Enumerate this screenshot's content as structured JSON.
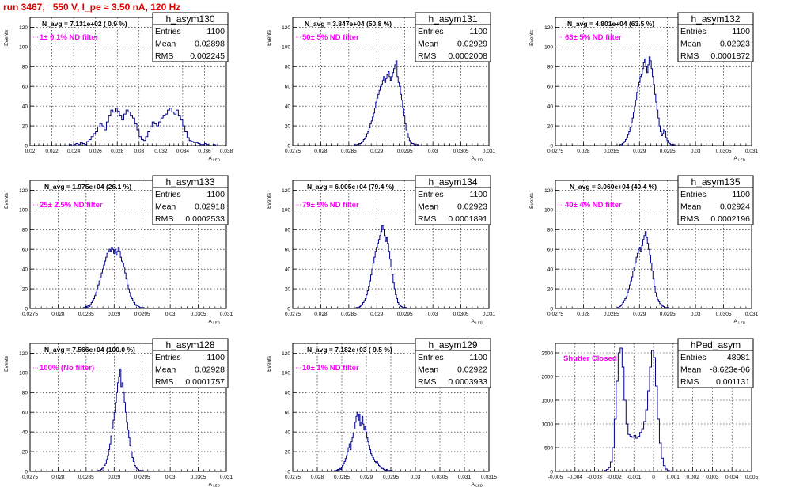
{
  "run_title": "run 3467,   550 V, I_pe ≈ 3.50 nA, 120 Hz",
  "stat_labels": {
    "entries": "Entries",
    "mean": "Mean",
    "rms": "RMS"
  },
  "colors": {
    "histogram": "#00008b",
    "title": "#e00000",
    "annotation": "#ff00ff"
  },
  "chart_data": [
    {
      "type": "histogram",
      "name": "h_asym130",
      "ylabel": "Events",
      "xlabel": "A_LED",
      "n_avg": "N_avg = 7.131e+02 ( 0.9 %)",
      "filter": "1± 0.1% ND filter",
      "stats": {
        "entries": "1100",
        "mean": "0.02898",
        "rms": "0.002245"
      },
      "xlim": [
        0.02,
        0.038
      ],
      "ylim": [
        0,
        130
      ],
      "xticks": [
        "0.02",
        "0.022",
        "0.024",
        "0.026",
        "0.028",
        "0.03",
        "0.032",
        "0.034",
        "0.036",
        "0.038"
      ],
      "yticks": [
        "0",
        "20",
        "40",
        "60",
        "80",
        "100",
        "120"
      ],
      "bins": {
        "start": 0.0236,
        "width": 0.0002,
        "values": [
          1,
          0,
          1,
          2,
          1,
          3,
          2,
          1,
          4,
          6,
          9,
          12,
          14,
          19,
          22,
          20,
          16,
          24,
          30,
          36,
          34,
          38,
          35,
          30,
          26,
          32,
          36,
          34,
          30,
          28,
          22,
          16,
          9,
          6,
          5,
          9,
          14,
          19,
          24,
          22,
          20,
          24,
          28,
          30,
          32,
          36,
          38,
          34,
          32,
          36,
          30,
          26,
          20,
          14,
          8,
          5,
          4,
          3,
          3,
          2,
          1,
          1,
          2,
          1,
          0,
          0,
          1
        ]
      }
    },
    {
      "type": "histogram",
      "name": "h_asym131",
      "ylabel": "Events",
      "xlabel": "A_LED",
      "n_avg": "N_avg = 3.847e+04 (50.8 %)",
      "filter": "50± 5% ND filter",
      "stats": {
        "entries": "1100",
        "mean": "0.02929",
        "rms": "0.0002008"
      },
      "xlim": [
        0.0275,
        0.031
      ],
      "ylim": [
        0,
        130
      ],
      "xticks": [
        "0.0275",
        "0.028",
        "0.0285",
        "0.029",
        "0.0295",
        "0.03",
        "0.0305",
        "0.031"
      ],
      "yticks": [
        "0",
        "20",
        "40",
        "60",
        "80",
        "100",
        "120"
      ],
      "bins": {
        "start": 0.0286,
        "width": 2e-05,
        "values": [
          1,
          0,
          1,
          1,
          2,
          2,
          3,
          4,
          6,
          7,
          9,
          12,
          14,
          18,
          22,
          25,
          29,
          33,
          38,
          44,
          48,
          52,
          56,
          60,
          62,
          66,
          70,
          64,
          68,
          72,
          75,
          70,
          66,
          70,
          74,
          78,
          82,
          86,
          70,
          64,
          60,
          52,
          46,
          38,
          30,
          22,
          16,
          12,
          8,
          5,
          3,
          2,
          2,
          1,
          1,
          0,
          1
        ]
      }
    },
    {
      "type": "histogram",
      "name": "h_asym132",
      "ylabel": "Events",
      "xlabel": "A_LED",
      "n_avg": "N_avg = 4.801e+04 (63.5 %)",
      "filter": "63± 5% ND filter",
      "stats": {
        "entries": "1100",
        "mean": "0.02923",
        "rms": "0.0001872"
      },
      "xlim": [
        0.0275,
        0.031
      ],
      "ylim": [
        0,
        130
      ],
      "xticks": [
        "0.0275",
        "0.028",
        "0.0285",
        "0.029",
        "0.0295",
        "0.03",
        "0.0305",
        "0.031"
      ],
      "yticks": [
        "0",
        "20",
        "40",
        "60",
        "80",
        "100",
        "120"
      ],
      "bins": {
        "start": 0.02865,
        "width": 2e-05,
        "values": [
          1,
          1,
          2,
          3,
          4,
          6,
          8,
          11,
          14,
          18,
          23,
          28,
          34,
          40,
          46,
          54,
          60,
          64,
          70,
          72,
          78,
          84,
          88,
          80,
          74,
          82,
          90,
          86,
          78,
          70,
          62,
          52,
          44,
          36,
          28,
          20,
          14,
          10,
          12,
          16,
          14,
          8,
          5,
          3,
          2,
          1,
          1,
          0,
          1
        ]
      }
    },
    {
      "type": "histogram",
      "name": "h_asym133",
      "ylabel": "Events",
      "xlabel": "A_LED",
      "n_avg": "N_avg = 1.975e+04 (26.1 %)",
      "filter": "25± 2.5% ND filter",
      "stats": {
        "entries": "1100",
        "mean": "0.02918",
        "rms": "0.0002533"
      },
      "xlim": [
        0.0275,
        0.031
      ],
      "ylim": [
        0,
        130
      ],
      "xticks": [
        "0.0275",
        "0.028",
        "0.0285",
        "0.029",
        "0.0295",
        "0.03",
        "0.0305",
        "0.031"
      ],
      "yticks": [
        "0",
        "20",
        "40",
        "60",
        "80",
        "100",
        "120"
      ],
      "bins": {
        "start": 0.02845,
        "width": 2e-05,
        "values": [
          1,
          0,
          2,
          1,
          3,
          2,
          4,
          6,
          8,
          10,
          13,
          16,
          20,
          24,
          28,
          32,
          36,
          40,
          44,
          48,
          52,
          56,
          58,
          60,
          58,
          62,
          60,
          56,
          60,
          54,
          58,
          62,
          58,
          52,
          48,
          46,
          42,
          36,
          30,
          24,
          20,
          16,
          12,
          10,
          8,
          6,
          4,
          3,
          3,
          2,
          1,
          1,
          0,
          1
        ]
      }
    },
    {
      "type": "histogram",
      "name": "h_asym134",
      "ylabel": "Events",
      "xlabel": "A_LED",
      "n_avg": "N_avg = 6.005e+04 (79.4 %)",
      "filter": "79± 5% ND filter",
      "stats": {
        "entries": "1100",
        "mean": "0.02923",
        "rms": "0.0001891"
      },
      "xlim": [
        0.0275,
        0.031
      ],
      "ylim": [
        0,
        130
      ],
      "xticks": [
        "0.0275",
        "0.028",
        "0.0285",
        "0.029",
        "0.0295",
        "0.03",
        "0.0305",
        "0.031"
      ],
      "yticks": [
        "0",
        "20",
        "40",
        "60",
        "80",
        "100",
        "120"
      ],
      "bins": {
        "start": 0.02863,
        "width": 2e-05,
        "values": [
          1,
          0,
          1,
          2,
          3,
          4,
          6,
          8,
          10,
          14,
          18,
          22,
          28,
          34,
          40,
          46,
          52,
          58,
          62,
          66,
          70,
          74,
          78,
          84,
          80,
          74,
          68,
          72,
          66,
          58,
          50,
          42,
          34,
          26,
          20,
          14,
          10,
          6,
          4,
          3,
          2,
          1,
          1,
          0,
          1
        ]
      }
    },
    {
      "type": "histogram",
      "name": "h_asym135",
      "ylabel": "Events",
      "xlabel": "A_LED",
      "n_avg": "N_avg = 3.060e+04 (40.4 %)",
      "filter": "40± 4% ND filter",
      "stats": {
        "entries": "1100",
        "mean": "0.02924",
        "rms": "0.0002196"
      },
      "xlim": [
        0.0275,
        0.031
      ],
      "ylim": [
        0,
        130
      ],
      "xticks": [
        "0.0275",
        "0.028",
        "0.0285",
        "0.029",
        "0.0295",
        "0.03",
        "0.0305",
        "0.031"
      ],
      "yticks": [
        "0",
        "20",
        "40",
        "60",
        "80",
        "100",
        "120"
      ],
      "bins": {
        "start": 0.0286,
        "width": 2e-05,
        "values": [
          1,
          1,
          2,
          3,
          4,
          6,
          8,
          10,
          12,
          16,
          20,
          24,
          28,
          32,
          38,
          42,
          46,
          52,
          56,
          60,
          62,
          58,
          64,
          70,
          74,
          78,
          72,
          66,
          60,
          54,
          46,
          38,
          30,
          22,
          16,
          12,
          9,
          7,
          5,
          4,
          3,
          2,
          1,
          1,
          0,
          1
        ]
      }
    },
    {
      "type": "histogram",
      "name": "h_asym128",
      "ylabel": "Events",
      "xlabel": "A_LED",
      "n_avg": "N_avg = 7.566e+04 (100.0 %)",
      "filter": "100% (No filter)",
      "stats": {
        "entries": "1100",
        "mean": "0.02928",
        "rms": "0.0001757"
      },
      "xlim": [
        0.0275,
        0.031
      ],
      "ylim": [
        0,
        130
      ],
      "xticks": [
        "0.0275",
        "0.028",
        "0.0285",
        "0.029",
        "0.0295",
        "0.03",
        "0.0305",
        "0.031"
      ],
      "yticks": [
        "0",
        "20",
        "40",
        "60",
        "80",
        "100",
        "120"
      ],
      "bins": {
        "start": 0.02872,
        "width": 2e-05,
        "values": [
          1,
          1,
          2,
          3,
          4,
          6,
          8,
          12,
          16,
          22,
          28,
          36,
          44,
          52,
          60,
          70,
          80,
          90,
          96,
          104,
          86,
          90,
          80,
          70,
          60,
          50,
          42,
          34,
          26,
          20,
          14,
          10,
          6,
          4,
          3,
          2,
          1,
          1,
          0,
          1
        ]
      }
    },
    {
      "type": "histogram",
      "name": "h_asym129",
      "ylabel": "Events",
      "xlabel": "A_LED",
      "n_avg": "N_avg = 7.182e+03 ( 9.5 %)",
      "filter": "10± 1% ND filter",
      "stats": {
        "entries": "1100",
        "mean": "0.02922",
        "rms": "0.0003933"
      },
      "xlim": [
        0.0275,
        0.0315
      ],
      "ylim": [
        0,
        130
      ],
      "xticks": [
        "0.0275",
        "0.028",
        "0.0285",
        "0.029",
        "0.0295",
        "0.03",
        "0.0305",
        "0.031",
        "0.0315"
      ],
      "yticks": [
        "0",
        "20",
        "40",
        "60",
        "80",
        "100",
        "120"
      ],
      "bins": {
        "start": 0.02835,
        "width": 2e-05,
        "values": [
          1,
          0,
          1,
          2,
          1,
          3,
          2,
          4,
          6,
          8,
          10,
          13,
          16,
          20,
          24,
          28,
          22,
          30,
          34,
          38,
          44,
          50,
          56,
          60,
          52,
          58,
          46,
          50,
          56,
          48,
          42,
          46,
          40,
          34,
          30,
          26,
          22,
          18,
          16,
          14,
          12,
          10,
          9,
          10,
          8,
          6,
          5,
          4,
          3,
          3,
          2,
          1,
          1,
          2,
          1,
          0,
          1,
          0,
          1
        ]
      }
    },
    {
      "type": "histogram",
      "name": "hPed_asym",
      "ylabel": "",
      "xlabel": "",
      "n_avg": "",
      "filter": "Shutter Closed",
      "stats": {
        "entries": "48981",
        "mean": "-8.623e-06",
        "rms": "0.001131"
      },
      "xlim": [
        -0.005,
        0.005
      ],
      "ylim": [
        0,
        2700
      ],
      "xticks": [
        "-0.005",
        "-0.004",
        "-0.003",
        "-0.002",
        "-0.001",
        "0",
        "0.001",
        "0.002",
        "0.003",
        "0.004",
        "0.005"
      ],
      "yticks": [
        "0",
        "500",
        "1000",
        "1500",
        "2000",
        "2500"
      ],
      "bins": {
        "start": -0.0025,
        "width": 0.0001,
        "values": [
          20,
          40,
          80,
          200,
          500,
          1100,
          1900,
          2500,
          2600,
          2200,
          1500,
          1000,
          780,
          740,
          720,
          760,
          700,
          740,
          820,
          900,
          1050,
          1300,
          1700,
          2200,
          2550,
          2400,
          1800,
          1100,
          600,
          280,
          120,
          50,
          20,
          10
        ]
      }
    }
  ]
}
